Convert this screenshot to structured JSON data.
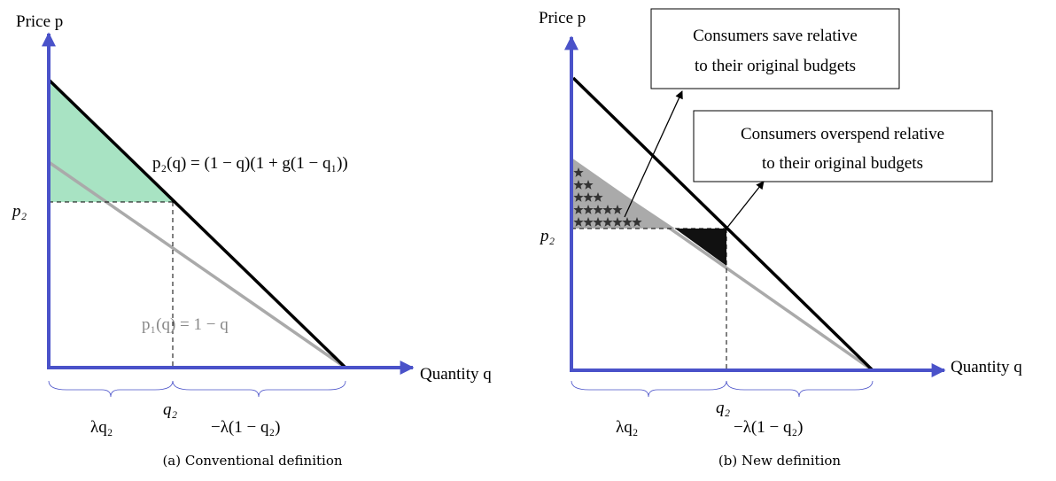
{
  "panel_a": {
    "y_axis_label": "Price p",
    "x_axis_label": "Quantity q",
    "p2_label": "p₂",
    "q2_label": "q₂",
    "new_curve_label": "p₂(q) = (1 − q)(1 + g(1 − q₁))",
    "old_curve_label": "p₁(q) = 1 − q",
    "left_brace_label": "λq₂",
    "right_brace_label": "−λ(1 − q₂)",
    "caption": "(a) Conventional definition"
  },
  "panel_b": {
    "y_axis_label": "Price p",
    "x_axis_label": "Quantity q",
    "p2_label": "p₂",
    "q2_label": "q₂",
    "left_brace_label": "λq₂",
    "right_brace_label": "−λ(1 − q₂)",
    "save_box": [
      "Consumers save relative",
      "to their original budgets"
    ],
    "overspend_box": [
      "Consumers overspend relative",
      "to their original budgets"
    ],
    "caption": "(b) New definition"
  }
}
